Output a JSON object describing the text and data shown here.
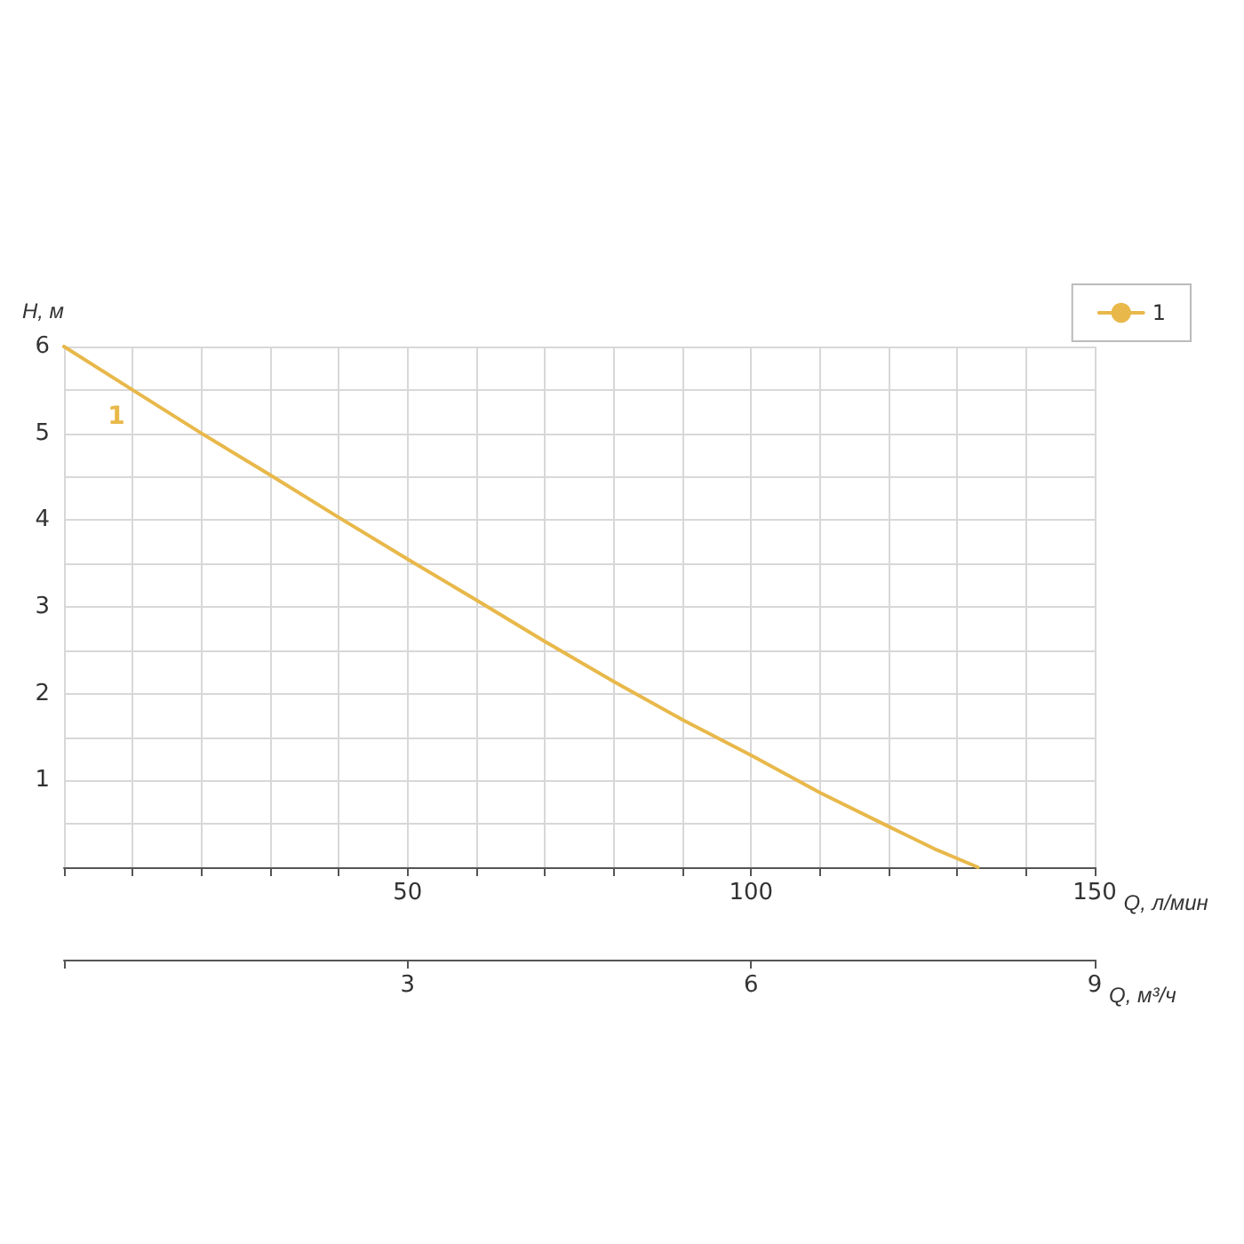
{
  "chart_data": {
    "type": "line",
    "xlabel": "Q, л/мин",
    "ylabel": "H, м",
    "x2label": "Q, м³/ч",
    "xlim": [
      0,
      150
    ],
    "xticks": [
      {
        "value": 0,
        "label": null
      },
      {
        "value": 10,
        "label": null
      },
      {
        "value": 20,
        "label": null
      },
      {
        "value": 30,
        "label": null
      },
      {
        "value": 40,
        "label": null
      },
      50,
      {
        "value": 60,
        "label": null
      },
      {
        "value": 70,
        "label": null
      },
      {
        "value": 80,
        "label": null
      },
      {
        "value": 90,
        "label": null
      },
      100,
      {
        "value": 110,
        "label": null
      },
      {
        "value": 120,
        "label": null
      },
      {
        "value": 130,
        "label": null
      },
      {
        "value": 140,
        "label": null
      },
      150
    ],
    "x2lim": [
      0,
      9
    ],
    "x2ticks": [
      {
        "value": 0,
        "label": null
      },
      3,
      6,
      9
    ],
    "ylim": [
      0,
      6
    ],
    "yticks": [
      {
        "value": 0,
        "label": null
      },
      {
        "value": 0.5,
        "label": null
      },
      1,
      {
        "value": 1.5,
        "label": null
      },
      2,
      {
        "value": 2.5,
        "label": null
      },
      3,
      {
        "value": 3.5,
        "label": null
      },
      4,
      {
        "value": 4.5,
        "label": null
      },
      5,
      {
        "value": 5.5,
        "label": null
      },
      6
    ],
    "grid": true,
    "legend": "top right",
    "marker": "none",
    "line_style": "solid",
    "series": [
      {
        "name": "1",
        "color": "#e8b84a",
        "x": [
          0,
          10,
          20,
          30,
          40,
          50,
          60,
          70,
          80,
          90,
          100,
          110,
          120,
          127,
          133
        ],
        "values": [
          6,
          5.5,
          5.0,
          4.52,
          4.03,
          3.55,
          3.08,
          2.6,
          2.14,
          1.7,
          1.29,
          0.86,
          0.47,
          0.2,
          0
        ]
      }
    ]
  }
}
